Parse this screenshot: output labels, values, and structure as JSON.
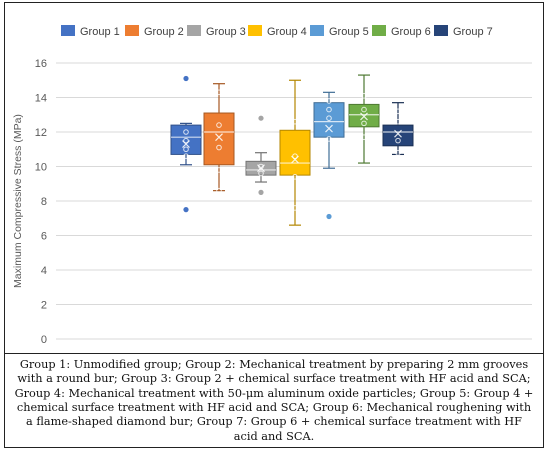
{
  "chart_data": {
    "type": "boxplot",
    "ylabel": "Maximum Compressive Stress (MPa)",
    "ylim": [
      0,
      16
    ],
    "y_ticks": [
      0,
      2,
      4,
      6,
      8,
      10,
      12,
      14,
      16
    ],
    "grid": true,
    "legend_position": "top",
    "series": [
      {
        "name": "Group 1",
        "color": "#4472c4",
        "whisker_low": 10.1,
        "q1": 10.7,
        "median": 11.7,
        "q3": 12.4,
        "whisker_high": 12.5,
        "mean": 11.3,
        "points": [
          11.0,
          11.5,
          12.0,
          10.6
        ],
        "outliers": [
          15.1,
          7.5
        ]
      },
      {
        "name": "Group 2",
        "color": "#ed7d31",
        "whisker_low": 8.6,
        "q1": 10.1,
        "median": 12.0,
        "q3": 13.1,
        "whisker_high": 14.8,
        "mean": 11.7,
        "points": [
          14.3,
          12.4,
          11.1,
          9.8,
          8.6
        ],
        "outliers": []
      },
      {
        "name": "Group 3",
        "color": "#a5a5a5",
        "whisker_low": 9.1,
        "q1": 9.5,
        "median": 9.8,
        "q3": 10.3,
        "whisker_high": 10.8,
        "mean": 9.9,
        "points": [
          10.0,
          9.6
        ],
        "outliers": [
          12.8,
          8.5
        ]
      },
      {
        "name": "Group 4",
        "color": "#ffc000",
        "whisker_low": 6.6,
        "q1": 9.5,
        "median": 10.2,
        "q3": 12.1,
        "whisker_high": 15.0,
        "mean": 10.4,
        "points": [
          12.6,
          10.6,
          9.4,
          7.6
        ],
        "outliers": []
      },
      {
        "name": "Group 5",
        "color": "#5b9bd5",
        "whisker_low": 9.9,
        "q1": 11.7,
        "median": 12.6,
        "q3": 13.7,
        "whisker_high": 14.3,
        "mean": 12.2,
        "points": [
          13.8,
          13.3,
          12.8,
          11.6
        ],
        "outliers": [
          7.1
        ]
      },
      {
        "name": "Group 6",
        "color": "#70ad47",
        "whisker_low": 10.2,
        "q1": 12.3,
        "median": 13.0,
        "q3": 13.6,
        "whisker_high": 15.3,
        "mean": 12.9,
        "points": [
          14.1,
          13.3,
          12.5,
          11.7
        ],
        "outliers": []
      },
      {
        "name": "Group 7",
        "color": "#264478",
        "whisker_low": 10.7,
        "q1": 11.2,
        "median": 12.0,
        "q3": 12.4,
        "whisker_high": 13.7,
        "mean": 11.9,
        "points": [
          13.2,
          12.6,
          11.5,
          10.8
        ],
        "outliers": []
      }
    ]
  },
  "caption": "Group 1: Unmodified group; Group 2: Mechanical treatment by preparing 2 mm grooves with a round bur; Group 3: Group 2 + chemical surface treatment with HF acid and SCA; Group 4: Mechanical treatment with 50-μm aluminum oxide particles; Group 5: Group 4 + chemical surface treatment with HF acid and SCA; Group 6: Mechanical roughening with a flame-shaped diamond bur; Group 7: Group 6 + chemical surface treatment with HF acid and SCA."
}
